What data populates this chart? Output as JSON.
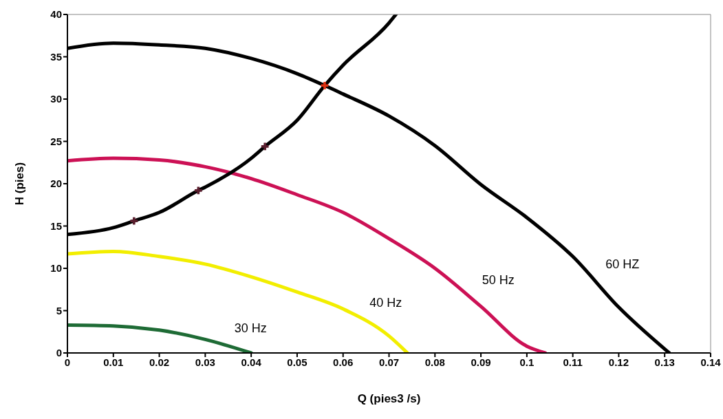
{
  "chart_data": {
    "type": "line",
    "xlabel": "Q (pies3 /s)",
    "ylabel": "H (pies)",
    "xlim": [
      0,
      0.14
    ],
    "xticks": [
      0,
      0.01,
      0.02,
      0.03,
      0.04,
      0.05,
      0.06,
      0.07,
      0.08,
      0.09,
      0.1,
      0.11,
      0.12,
      0.13,
      0.14
    ],
    "ylim": [
      0,
      40
    ],
    "yticks": [
      0,
      5,
      10,
      15,
      20,
      25,
      30,
      35,
      40
    ],
    "grid": false,
    "marker": "none",
    "line_style": "solid",
    "series": [
      {
        "name": "60 HZ",
        "color": "#000000",
        "x": [
          0,
          0.01,
          0.02,
          0.03,
          0.04,
          0.05,
          0.056,
          0.06,
          0.07,
          0.08,
          0.09,
          0.1,
          0.11,
          0.12,
          0.131
        ],
        "values": [
          36,
          36.6,
          36.4,
          36,
          34.8,
          33,
          31.6,
          30.6,
          28,
          24.5,
          19.9,
          16,
          11.4,
          5.4,
          0
        ]
      },
      {
        "name": "50 Hz",
        "color": "#cc1155",
        "x": [
          0,
          0.01,
          0.02,
          0.03,
          0.04,
          0.05,
          0.06,
          0.07,
          0.08,
          0.09,
          0.1,
          0.104
        ],
        "values": [
          22.7,
          23,
          22.8,
          22,
          20.6,
          18.7,
          16.6,
          13.5,
          10,
          5.5,
          0.8,
          0
        ]
      },
      {
        "name": "40 Hz",
        "color": "#f2ee00",
        "x": [
          0,
          0.01,
          0.02,
          0.03,
          0.04,
          0.05,
          0.06,
          0.07,
          0.074
        ],
        "values": [
          11.7,
          12,
          11.4,
          10.5,
          9,
          7.2,
          5.2,
          2,
          0
        ]
      },
      {
        "name": "30 Hz",
        "color": "#1e6b35",
        "x": [
          0,
          0.01,
          0.02,
          0.03,
          0.04
        ],
        "values": [
          3.3,
          3.2,
          2.7,
          1.6,
          0
        ]
      },
      {
        "color": "#000000",
        "x": [
          0,
          0.01,
          0.0145,
          0.02,
          0.0285,
          0.03,
          0.04,
          0.043,
          0.05,
          0.056,
          0.06,
          0.07,
          0.0715
        ],
        "values": [
          14,
          14.8,
          15.6,
          16.6,
          19.2,
          19.6,
          23,
          24.4,
          27.5,
          31.6,
          34,
          39,
          40
        ]
      },
      {
        "type": "scatter",
        "marker": "cross",
        "colors": [
          "#5a1e2e",
          "#5a1e2e",
          "#5a1e2e",
          "#e03010"
        ],
        "x": [
          0.0145,
          0.0285,
          0.043,
          0.056
        ],
        "values": [
          15.6,
          19.2,
          24.4,
          31.6
        ]
      }
    ]
  }
}
